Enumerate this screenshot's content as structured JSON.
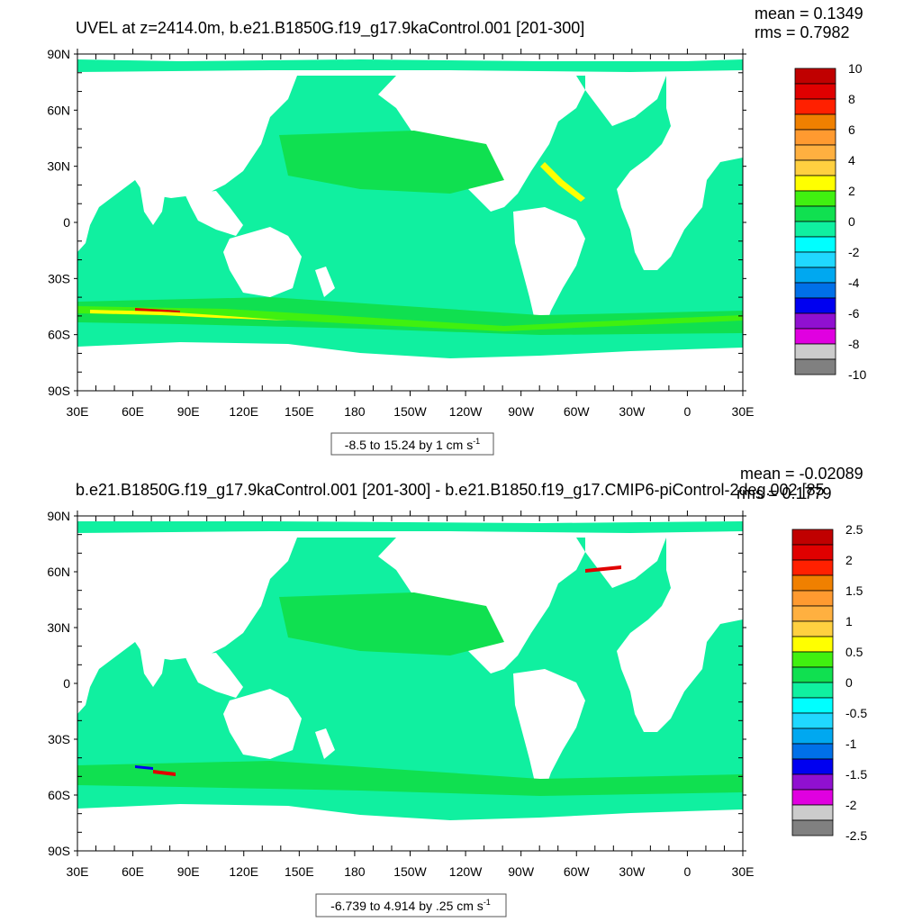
{
  "panels": [
    {
      "id": "top",
      "title": "UVEL at z=2414.0m, b.e21.B1850G.f19_g17.9kaControl.001 [201-300]",
      "mean_label": "mean = 0.1349",
      "rms_label": "rms = 0.7982",
      "range_label": "-8.5 to 15.24 by 1 cm s",
      "range_unit_sup": "-1",
      "colorbar": {
        "labels": [
          "10",
          "8",
          "6",
          "4",
          "2",
          "0",
          "-2",
          "-4",
          "-6",
          "-8",
          "-10"
        ],
        "colors": [
          "#c00000",
          "#e00000",
          "#ff2000",
          "#f08000",
          "#ff9a30",
          "#ffb040",
          "#ffd040",
          "#ffff00",
          "#40f010",
          "#10e050",
          "#10f0a0",
          "#00ffff",
          "#20d8ff",
          "#00a8f0",
          "#0070e8",
          "#0000f0",
          "#9010d0",
          "#e000e0",
          "#cccccc",
          "#808080"
        ]
      }
    },
    {
      "id": "bottom",
      "title": "b.e21.B1850G.f19_g17.9kaControl.001 [201-300] - b.e21.B1850.f19_g17.CMIP6-piControl-2deg.002 [85",
      "mean_label": "mean = -0.02089",
      "rms_label": "rms = 0.1779",
      "range_label": "-6.739 to 4.914 by .25 cm s",
      "range_unit_sup": "-1",
      "colorbar": {
        "labels": [
          "2.5",
          "2",
          "1.5",
          "1",
          "0.5",
          "0",
          "-0.5",
          "-1",
          "-1.5",
          "-2",
          "-2.5"
        ],
        "colors": [
          "#c00000",
          "#e00000",
          "#ff2000",
          "#f08000",
          "#ff9a30",
          "#ffb040",
          "#ffd040",
          "#ffff00",
          "#40f010",
          "#10e050",
          "#10f0a0",
          "#00ffff",
          "#20d8ff",
          "#00a8f0",
          "#0070e8",
          "#0000f0",
          "#9010d0",
          "#e000e0",
          "#cccccc",
          "#808080"
        ]
      }
    }
  ],
  "axes": {
    "lat_labels": [
      "90N",
      "60N",
      "30N",
      "0",
      "30S",
      "60S",
      "90S"
    ],
    "lon_labels": [
      "30E",
      "60E",
      "90E",
      "120E",
      "150E",
      "180",
      "150W",
      "120W",
      "90W",
      "60W",
      "30W",
      "0",
      "30E"
    ]
  },
  "colors": {
    "field_base": "#10f0a0",
    "field_green": "#10e050",
    "field_cyan": "#00ffff",
    "field_lightgreen": "#40f010",
    "field_yellow": "#ffff00",
    "field_red": "#e00000",
    "field_blue": "#0000f0",
    "land": "#ffffff"
  }
}
